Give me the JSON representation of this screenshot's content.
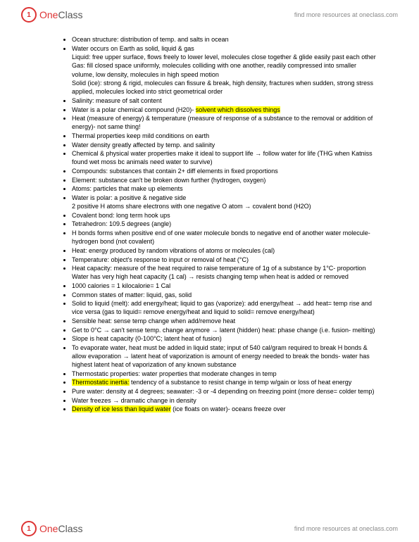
{
  "header": {
    "logo_one": "One",
    "logo_class": "Class",
    "link": "find more resources at oneclass.com"
  },
  "bullets": [
    {
      "t": "Ocean structure: distribution of temp. and salts in ocean"
    },
    {
      "t": "Water occurs on Earth as solid, liquid & gas",
      "sub": [
        "Liquid: free upper surface, flows freely to lower level, molecules close together & glide easily past each other",
        "Gas: fill closed space uniformly, molecules colliding with one another, readily compressed into smaller volume, low density, molecules in high speed motion",
        "Solid (ice): strong & rigid, molecules can fissure & break, high density, fractures when sudden, strong stress applied, molecules locked into strict geometrical order"
      ]
    },
    {
      "t": "Salinity: measure of salt content"
    },
    {
      "html": "Water is a polar chemical compound (H20)- <span class='highlight'>solvent which dissolves things</span>"
    },
    {
      "t": "Heat (measure of energy) & temperature (measure of response of a substance to the removal or addition of energy)- not same thing!"
    },
    {
      "t": "Thermal properties keep mild conditions on earth"
    },
    {
      "t": "Water density greatly affected by temp. and salinity"
    },
    {
      "t": "Chemical & physical water properties make it ideal to support life → follow water for life (THG when Katniss found wet moss bc animals need water to survive)"
    },
    {
      "t": "Compounds: substances that contain 2+ diff elements in fixed proportions"
    },
    {
      "t": "Element: substance can't be broken down further (hydrogen, oxygen)"
    },
    {
      "t": "Atoms: particles that make up elements"
    },
    {
      "t": "Water is polar: a positive & negative side",
      "sub": [
        "2 positive H atoms share electrons with one negative O atom → covalent bond (H2O)"
      ]
    },
    {
      "t": "Covalent bond: long term hook ups"
    },
    {
      "t": "Tetrahedron: 109.5 degrees (angle)"
    },
    {
      "t": "H bonds forms when positive end of one water molecule bonds to negative end of another water molecule- hydrogen bond (not covalent)"
    },
    {
      "t": "Heat: energy produced by random vibrations of atoms or molecules (cal)"
    },
    {
      "t": "Temperature: object's response to input or removal of heat (°C)"
    },
    {
      "t": "Heat capacity: measure of the heat required to raise temperature of 1g of a substance by 1°C- proportion",
      "sub": [
        "Water has very high heat capacity (1 cal) → resists changing temp when heat is added or removed"
      ]
    },
    {
      "t": "1000 calories = 1 kilocalorie= 1 Cal"
    },
    {
      "t": "Common states of matter: liquid, gas, solid"
    },
    {
      "t": "Solid to liquid (melt): add energy/heat; liquid to gas (vaporize): add energy/heat → add heat= temp rise and vice versa (gas to liquid= remove energy/heat and liquid to solid= remove energy/heat)"
    },
    {
      "t": "Sensible heat: sense temp change when add/remove heat"
    },
    {
      "t": "Get to 0°C → can't sense temp. change anymore → latent (hidden) heat: phase change (i.e. fusion- melting)"
    },
    {
      "t": "Slope is heat capacity (0-100°C; latent heat of fusion)"
    },
    {
      "t": "To evaporate water, heat must be added in liquid state; input of 540 cal/gram required to break H bonds & allow evaporation → latent heat of vaporization is amount of energy needed to break the bonds- water has highest latent heat of vaporization of any known substance"
    },
    {
      "t": "Thermostatic properties: water properties that moderate changes in temp"
    },
    {
      "html": "<span class='highlight'>Thermostatic inertia:</span> tendency of a substance to resist change in temp w/gain or loss of heat energy"
    },
    {
      "t": "Pure water: density at 4 degrees; seawater: -3 or -4 depending on freezing point (more dense= colder temp)"
    },
    {
      "t": "Water freezes → dramatic change in density"
    },
    {
      "html": "<span class='highlight'>Density of ice less than liquid water</span> (ice floats on water)- oceans freeze over"
    }
  ],
  "footer": {
    "logo_one": "One",
    "logo_class": "Class",
    "link": "find more resources at oneclass.com"
  }
}
